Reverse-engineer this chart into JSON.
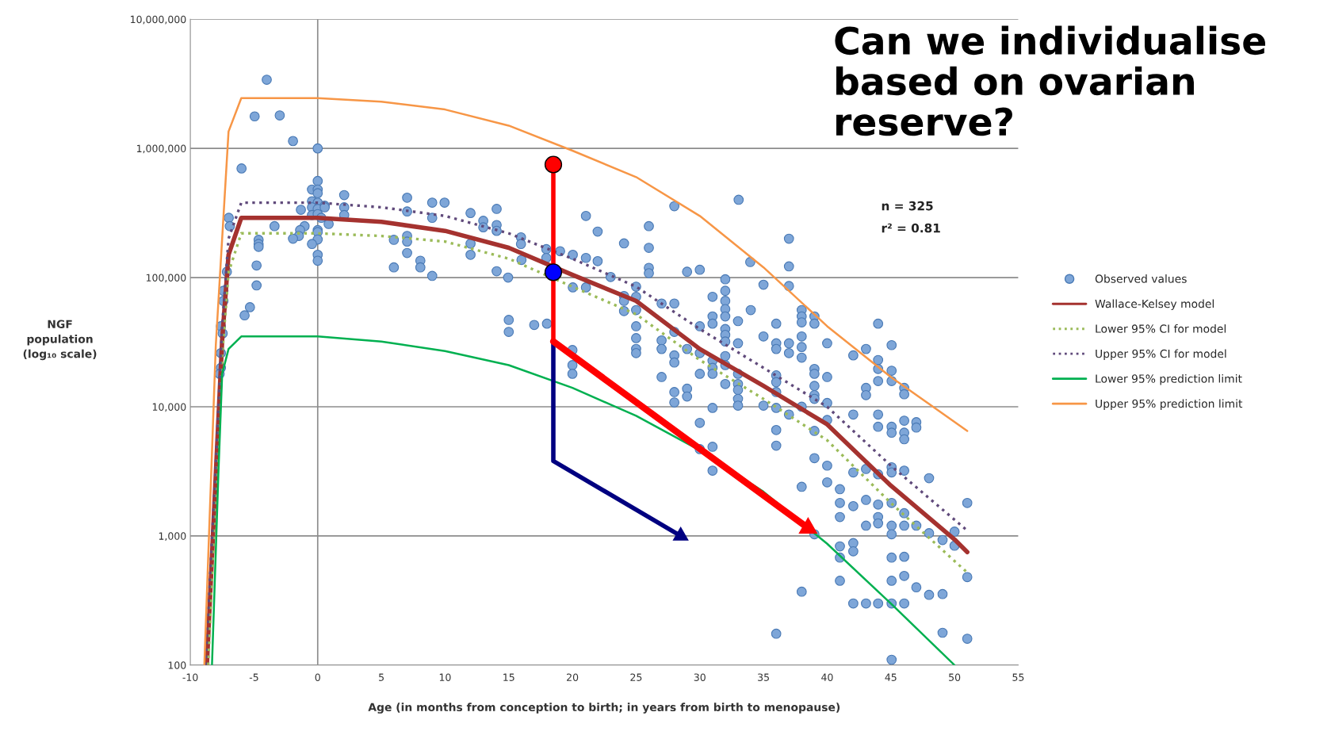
{
  "chart_data": {
    "type": "scatter",
    "title": "Can we individualise based on ovarian reserve?",
    "xlabel": "Age (in months from conception to birth; in years from birth to menopause)",
    "ylabel": "NGF population (log₁₀ scale)",
    "annotations": [
      "n = 325",
      "r² = 0.81"
    ],
    "log": "y",
    "grid": "y",
    "legend": "right",
    "xlim": [
      -10,
      55
    ],
    "xticks": [
      -10,
      -5,
      0,
      5,
      10,
      15,
      20,
      25,
      30,
      35,
      40,
      45,
      50,
      55
    ],
    "ylim": [
      100,
      10000000
    ],
    "yticks": [
      {
        "value": 100,
        "label": "100"
      },
      {
        "value": 1000,
        "label": "1,000"
      },
      {
        "value": 10000,
        "label": "10,000"
      },
      {
        "value": 100000,
        "label": "100,000"
      },
      {
        "value": 1000000,
        "label": "1,000,000"
      },
      {
        "value": 10000000,
        "label": "10,000,000"
      }
    ],
    "ref_lines": [
      {
        "axis": "x",
        "value": 0,
        "color": "#8c8c8c"
      }
    ],
    "series": [
      {
        "name": "Observed values",
        "marker": "circle",
        "color": "#7ea6d8",
        "x": [
          -4.0,
          -4.95,
          -2.98,
          -1.94,
          0,
          -5.98,
          0,
          -0.45,
          0,
          0,
          -0.45,
          0,
          0.55,
          -0.45,
          0,
          0.55,
          -1.32,
          -0.45,
          0,
          0.28,
          0.86,
          2.08,
          2.08,
          2.08,
          -6.98,
          -6.9,
          -3.39,
          -1.03,
          -1.38,
          -1.48,
          -1.94,
          0,
          0,
          0,
          -0.45,
          0,
          0,
          -4.64,
          -4.64,
          -4.64,
          -4.8,
          -4.8,
          -5.32,
          -5.74,
          -7.13,
          -7.4,
          -7.4,
          -7.6,
          -7.46,
          -7.6,
          -7.6,
          -7.7,
          5.98,
          5.98,
          7.02,
          7.02,
          7.02,
          7.02,
          7.02,
          8.99,
          9.96,
          8.99,
          8.06,
          8.06,
          8.99,
          12.0,
          14.05,
          13.0,
          13.0,
          14.05,
          14.05,
          12.0,
          12.0,
          15.96,
          15.96,
          16.0,
          14.05,
          14.95,
          17.95,
          17.95,
          19.03,
          20.03,
          21.06,
          21.06,
          21.98,
          21.98,
          20.03,
          21.06,
          23.0,
          24.05,
          26.0,
          26.0,
          26.0,
          26.0,
          28.0,
          29.0,
          30.0,
          33.05,
          33.96,
          25.0,
          25.0,
          24.05,
          24.05,
          24.05,
          25.0,
          25.0,
          25.0,
          25.0,
          25.0,
          27.0,
          28.0,
          28.0,
          27.0,
          27.0,
          28.0,
          28.0,
          29.0,
          30.0,
          30.0,
          30.0,
          27.0,
          28.0,
          28.0,
          29.0,
          29.0,
          31.0,
          31.0,
          31.0,
          31.0,
          31.0,
          31.0,
          31.0,
          30.0,
          31.0,
          30.0,
          31.0,
          32.0,
          32.0,
          32.0,
          32.0,
          32.0,
          32.0,
          32.0,
          32.0,
          32.0,
          32.0,
          32.0,
          33.0,
          33.0,
          33.0,
          33.0,
          33.0,
          33.0,
          33.0,
          34.0,
          15.0,
          15.0,
          17.0,
          18.0,
          20.0,
          20.0,
          20.0,
          37.0,
          37.0,
          37.0,
          35.0,
          36.0,
          35.0,
          36.0,
          36.0,
          37.0,
          37.0,
          38.0,
          38.0,
          38.0,
          38.0,
          38.0,
          38.0,
          39.0,
          39.0,
          40.0,
          39.0,
          39.0,
          39.0,
          39.0,
          39.0,
          40.0,
          40.0,
          36.0,
          36.0,
          36.0,
          36.0,
          35.0,
          37.0,
          38.0,
          36.0,
          36.0,
          39.0,
          40.0,
          42.05,
          43.05,
          44.0,
          45.06,
          44.0,
          44.0,
          44.0,
          45.06,
          45.06,
          43.05,
          43.05,
          46.05,
          46.05,
          42.05,
          44.0,
          44.0,
          45.06,
          45.06,
          46.05,
          46.05,
          46.05,
          47.0,
          47.0,
          39.0,
          40.0,
          42.05,
          43.05,
          44.0,
          45.06,
          45.06,
          46.05,
          48.0,
          38.0,
          40.0,
          41.0,
          41.0,
          42.05,
          43.05,
          44.0,
          45.06,
          41.0,
          44.0,
          44.0,
          43.05,
          45.06,
          45.06,
          46.05,
          46.05,
          47.0,
          48.0,
          49.06,
          50.0,
          50.0,
          51.0,
          51.0,
          39.0,
          41.0,
          42.05,
          42.05,
          41.0,
          45.06,
          46.05,
          41.0,
          45.06,
          46.05,
          47.0,
          48.0,
          49.06,
          38.0,
          42.05,
          43.05,
          44.0,
          45.06,
          46.05,
          36.0,
          49.06,
          51.0,
          45.06
        ],
        "values": [
          3400000,
          1770000,
          1800000,
          1140000,
          1000000,
          700000,
          560000,
          480000,
          480000,
          450000,
          390000,
          380000,
          360000,
          350000,
          340000,
          350000,
          335000,
          305000,
          310000,
          290000,
          260000,
          435000,
          350000,
          305000,
          290000,
          250000,
          250000,
          250000,
          233000,
          210000,
          200000,
          233000,
          225000,
          197000,
          182000,
          150000,
          135000,
          196000,
          182000,
          173000,
          124000,
          87000,
          59000,
          51000,
          111000,
          79000,
          66000,
          42000,
          37000,
          26000,
          20000,
          18000,
          196000,
          120000,
          415000,
          325000,
          210000,
          190000,
          155000,
          380000,
          380000,
          290000,
          135000,
          120000,
          103000,
          316000,
          340000,
          275000,
          245000,
          255000,
          230000,
          183000,
          150000,
          205000,
          182000,
          137000,
          112000,
          100000,
          166000,
          142000,
          160000,
          150000,
          142000,
          300000,
          227000,
          134000,
          84000,
          84000,
          101000,
          184000,
          250000,
          170000,
          119000,
          108000,
          357000,
          111000,
          115000,
          400000,
          132000,
          85000,
          71000,
          72000,
          66000,
          55000,
          56000,
          42000,
          34000,
          28000,
          26000,
          63000,
          63000,
          38000,
          32600,
          28000,
          25000,
          22000,
          28000,
          42000,
          26000,
          18000,
          17000,
          13000,
          10800,
          13800,
          12000,
          71000,
          50000,
          44000,
          22700,
          20000,
          18000,
          9800,
          7500,
          4900,
          4700,
          3200,
          97000,
          79000,
          66000,
          57000,
          50000,
          40000,
          36000,
          32000,
          24700,
          21000,
          15000,
          46000,
          31000,
          18000,
          15000,
          13500,
          11500,
          10200,
          56000,
          47000,
          38000,
          43000,
          44000,
          27500,
          21000,
          18000,
          200000,
          122000,
          86000,
          88000,
          44000,
          35000,
          31000,
          28000,
          31000,
          26000,
          56000,
          50000,
          45000,
          35000,
          29000,
          24000,
          50000,
          44000,
          31000,
          19600,
          18000,
          14500,
          12300,
          11500,
          17000,
          10700,
          17500,
          15500,
          13000,
          9800,
          10200,
          8700,
          10000,
          6600,
          5000,
          6500,
          7900,
          25000,
          28000,
          44000,
          30000,
          23000,
          19600,
          15800,
          19000,
          15800,
          14000,
          12300,
          14000,
          12500,
          8700,
          8700,
          7000,
          7000,
          6300,
          7800,
          6300,
          5600,
          7600,
          6900,
          4000,
          3500,
          3100,
          3300,
          3000,
          3400,
          3100,
          3200,
          2800,
          2400,
          2600,
          2300,
          1800,
          1700,
          1900,
          1750,
          1800,
          1400,
          1400,
          1250,
          1200,
          1200,
          1030,
          1500,
          1200,
          1200,
          1050,
          930,
          1080,
          840,
          1800,
          480,
          1030,
          830,
          880,
          760,
          680,
          680,
          690,
          450,
          450,
          490,
          400,
          350,
          355,
          370,
          300,
          300,
          300,
          300,
          300,
          175,
          178,
          160,
          110
        ]
      },
      {
        "name": "Wallace-Kelsey model",
        "type": "line",
        "line_style": "solid",
        "color": "#a5322f",
        "x": [
          -8.7,
          -8,
          -7.5,
          -7,
          -6,
          0,
          5,
          10,
          15,
          20,
          25,
          30,
          35,
          40,
          45,
          50,
          51
        ],
        "values": [
          100,
          3000,
          33000,
          150000,
          290000,
          290000,
          270000,
          230000,
          170000,
          105000,
          66000,
          28000,
          14500,
          7300,
          2450,
          940,
          750
        ]
      },
      {
        "name": "Lower 95% CI for model",
        "type": "line",
        "line_style": "dotted",
        "color": "#9bbb59",
        "x": [
          -8.6,
          -8,
          -7.5,
          -7,
          -6,
          0,
          5,
          10,
          15,
          20,
          25,
          30,
          35,
          40,
          45,
          51
        ],
        "values": [
          100,
          2500,
          25000,
          110000,
          220000,
          220000,
          210000,
          190000,
          140000,
          85000,
          52000,
          23000,
          11500,
          5500,
          1800,
          520
        ]
      },
      {
        "name": "Upper 95% CI for model",
        "type": "line",
        "line_style": "dotted",
        "color": "#604a7b",
        "x": [
          -8.8,
          -8,
          -7.5,
          -7,
          -6,
          0,
          5,
          10,
          15,
          20,
          25,
          30,
          35,
          40,
          45,
          51
        ],
        "values": [
          100,
          3500,
          42000,
          200000,
          380000,
          380000,
          350000,
          300000,
          220000,
          140000,
          85000,
          40000,
          20000,
          10000,
          3500,
          1100
        ]
      },
      {
        "name": "Lower 95% prediction limit",
        "type": "line",
        "line_style": "solid",
        "color": "#00b050",
        "x": [
          -8.3,
          -7.8,
          -7.5,
          -7,
          -6,
          0,
          5,
          10,
          15,
          20,
          25,
          30,
          35,
          40,
          45,
          50
        ],
        "values": [
          100,
          3000,
          18000,
          28000,
          35000,
          35000,
          32000,
          27000,
          21000,
          14000,
          8500,
          4600,
          2200,
          870,
          300,
          100
        ]
      },
      {
        "name": "Upper 95% prediction limit",
        "type": "line",
        "line_style": "solid",
        "color": "#f79646",
        "x": [
          -8.9,
          -8,
          -7,
          -6,
          0,
          5,
          10,
          15,
          20,
          25,
          30,
          35,
          40,
          45,
          51
        ],
        "values": [
          100,
          30000,
          1350000,
          2450000,
          2450000,
          2300000,
          2000000,
          1500000,
          960000,
          600000,
          300000,
          120000,
          42000,
          17000,
          6500
        ]
      }
    ]
  }
}
